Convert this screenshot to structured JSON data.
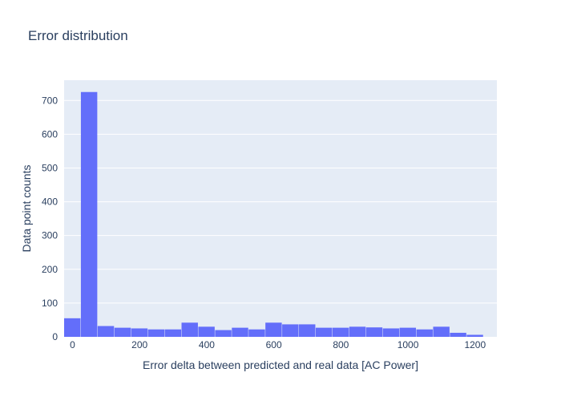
{
  "chart_data": {
    "type": "bar",
    "title": "Error distribution",
    "xlabel": "Error delta between predicted and real data [AC Power]",
    "ylabel": "Data point counts",
    "bin_width": 50,
    "bins": [
      {
        "x0": -25,
        "x1": 25,
        "count": 55
      },
      {
        "x0": 25,
        "x1": 75,
        "count": 725
      },
      {
        "x0": 75,
        "x1": 125,
        "count": 32
      },
      {
        "x0": 125,
        "x1": 175,
        "count": 27
      },
      {
        "x0": 175,
        "x1": 225,
        "count": 25
      },
      {
        "x0": 225,
        "x1": 275,
        "count": 22
      },
      {
        "x0": 275,
        "x1": 325,
        "count": 22
      },
      {
        "x0": 325,
        "x1": 375,
        "count": 42
      },
      {
        "x0": 375,
        "x1": 425,
        "count": 30
      },
      {
        "x0": 425,
        "x1": 475,
        "count": 20
      },
      {
        "x0": 475,
        "x1": 525,
        "count": 27
      },
      {
        "x0": 525,
        "x1": 575,
        "count": 22
      },
      {
        "x0": 575,
        "x1": 625,
        "count": 42
      },
      {
        "x0": 625,
        "x1": 675,
        "count": 37
      },
      {
        "x0": 675,
        "x1": 725,
        "count": 37
      },
      {
        "x0": 725,
        "x1": 775,
        "count": 27
      },
      {
        "x0": 775,
        "x1": 825,
        "count": 27
      },
      {
        "x0": 825,
        "x1": 875,
        "count": 30
      },
      {
        "x0": 875,
        "x1": 925,
        "count": 28
      },
      {
        "x0": 925,
        "x1": 975,
        "count": 25
      },
      {
        "x0": 975,
        "x1": 1025,
        "count": 27
      },
      {
        "x0": 1025,
        "x1": 1075,
        "count": 22
      },
      {
        "x0": 1075,
        "x1": 1125,
        "count": 30
      },
      {
        "x0": 1125,
        "x1": 1175,
        "count": 12
      },
      {
        "x0": 1175,
        "x1": 1225,
        "count": 6
      }
    ],
    "xlim": [
      -25,
      1265
    ],
    "ylim": [
      0,
      760
    ],
    "xticks": [
      0,
      200,
      400,
      600,
      800,
      1000,
      1200
    ],
    "yticks": [
      0,
      100,
      200,
      300,
      400,
      500,
      600,
      700
    ],
    "grid": true,
    "colors": {
      "bar": "#636efa",
      "plot_bg": "#e5ecf6",
      "grid": "#ffffff",
      "text": "#2a3f5f"
    }
  }
}
